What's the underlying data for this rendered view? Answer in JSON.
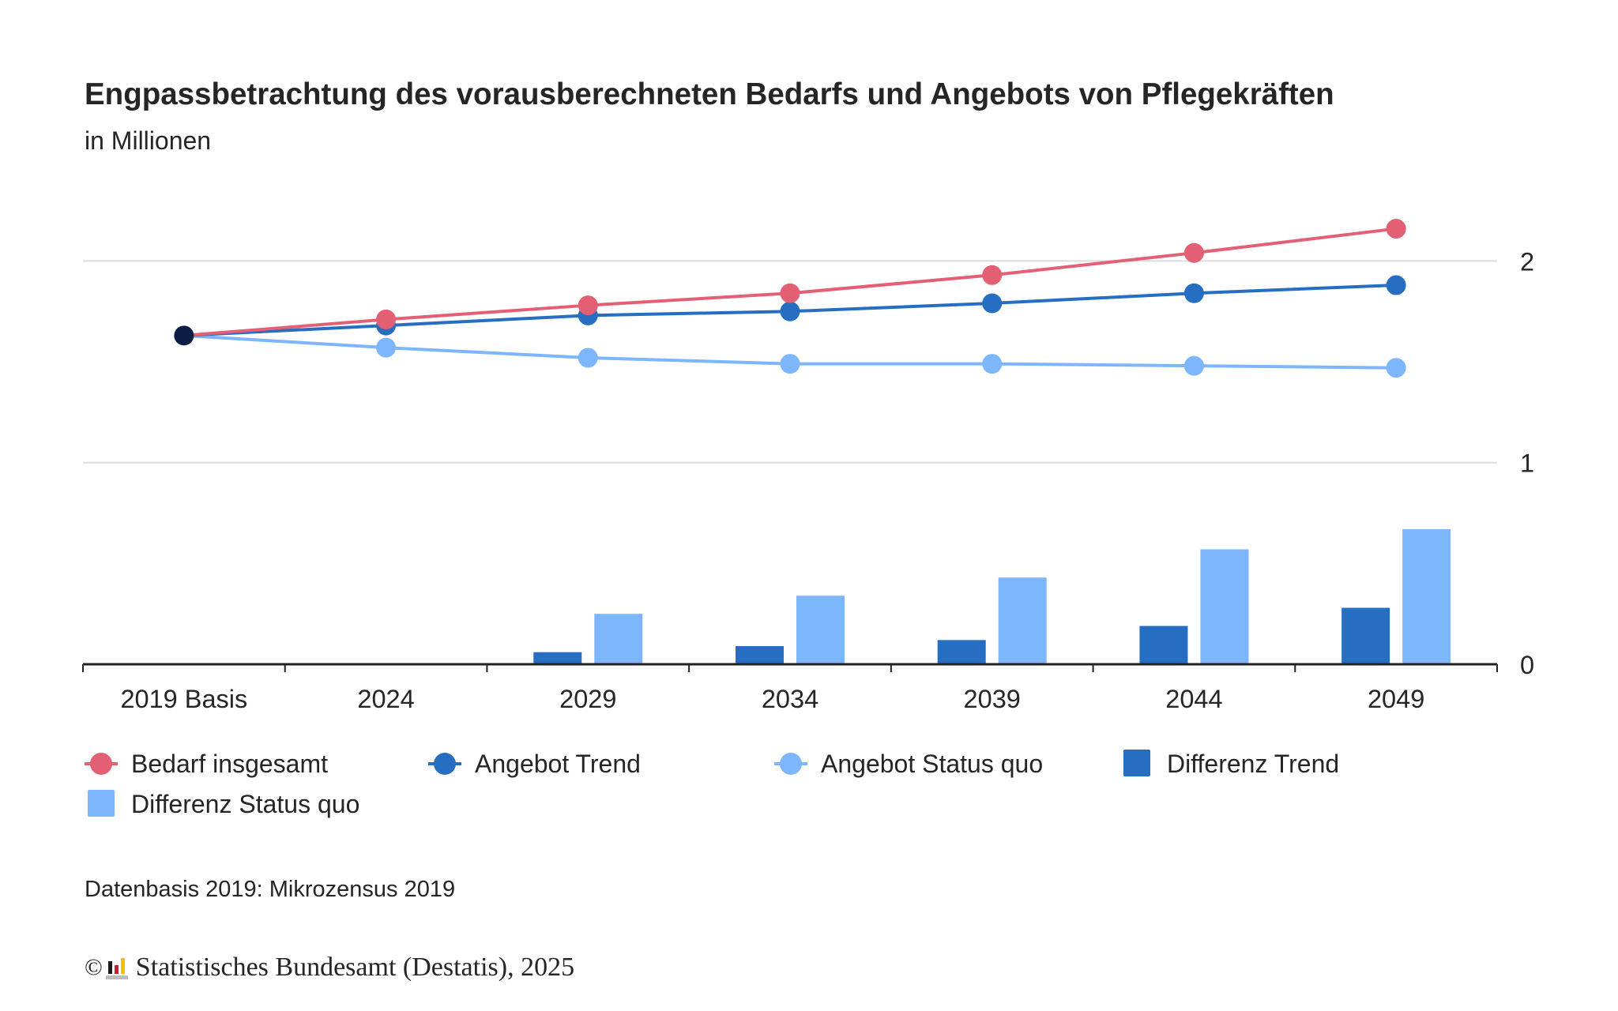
{
  "header": {
    "title": "Engpassbetrachtung des vorausberechneten Bedarfs und Angebots von Pflegekräften",
    "subtitle": "in Millionen"
  },
  "chart_data": {
    "type": "bar",
    "title": "Engpassbetrachtung des vorausberechneten Bedarfs und Angebots von Pflegekräften",
    "subtitle": "in Millionen",
    "xlabel": "",
    "ylabel": "in Millionen",
    "categories": [
      "2019 Basis",
      "2024",
      "2029",
      "2034",
      "2039",
      "2044",
      "2049"
    ],
    "ylim": [
      0,
      2.5
    ],
    "yticks": [
      0,
      1,
      2
    ],
    "y_axis_side": "right",
    "grid": true,
    "legend_position": "bottom",
    "series": [
      {
        "name": "Bedarf insgesamt",
        "kind": "line",
        "color": "#e35f74",
        "values": [
          1.63,
          1.71,
          1.78,
          1.84,
          1.93,
          2.04,
          2.16
        ]
      },
      {
        "name": "Angebot Trend",
        "kind": "line",
        "color": "#266ec2",
        "values": [
          1.63,
          1.68,
          1.73,
          1.75,
          1.79,
          1.84,
          1.88
        ]
      },
      {
        "name": "Angebot Status quo",
        "kind": "line",
        "color": "#7db6fd",
        "values": [
          1.63,
          1.57,
          1.52,
          1.49,
          1.49,
          1.48,
          1.47
        ]
      },
      {
        "name": "Differenz Trend",
        "kind": "bar",
        "color": "#266ec2",
        "values": [
          0,
          0,
          0.06,
          0.09,
          0.12,
          0.19,
          0.28
        ]
      },
      {
        "name": "Differenz Status quo",
        "kind": "bar",
        "color": "#7db6fd",
        "values": [
          0,
          0,
          0.25,
          0.34,
          0.43,
          0.57,
          0.67
        ]
      }
    ],
    "base_point": {
      "category": "2019 Basis",
      "value": 1.63,
      "color": "#0b1f45"
    }
  },
  "legend": [
    {
      "label": "Bedarf insgesamt",
      "type": "line",
      "color": "#e35f74"
    },
    {
      "label": "Angebot Trend",
      "type": "line",
      "color": "#266ec2"
    },
    {
      "label": "Angebot Status quo",
      "type": "line",
      "color": "#7db6fd"
    },
    {
      "label": "Differenz Trend",
      "type": "bar",
      "color": "#266ec2"
    },
    {
      "label": "Differenz Status quo",
      "type": "bar",
      "color": "#7db6fd"
    }
  ],
  "footer": {
    "note": "Datenbasis 2019: Mikrozensus 2019",
    "copyright_symbol": "©",
    "credit": "Statistisches Bundesamt (Destatis), 2025"
  },
  "colors": {
    "text": "#252525",
    "gridline": "#dcdcdc",
    "axis": "#222222"
  }
}
